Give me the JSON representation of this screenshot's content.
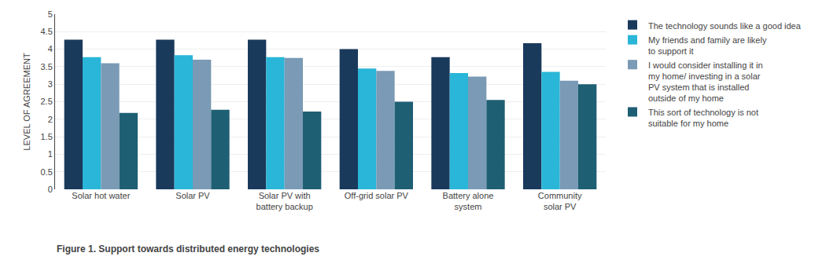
{
  "chart_data": {
    "type": "bar",
    "title": "Figure 1. Support towards distributed energy technologies",
    "categories": [
      "Solar hot water",
      "Solar PV",
      "Solar PV with\nbattery backup",
      "Off-grid solar PV",
      "Battery alone\nsystem",
      "Community\nsolar PV"
    ],
    "series": [
      {
        "name": "The technology sounds like a good idea",
        "color": "#1a3a5c",
        "values": [
          4.27,
          4.27,
          4.27,
          4.0,
          3.77,
          4.17
        ]
      },
      {
        "name": "My friends and family are likely\nto support it",
        "color": "#29b6d8",
        "values": [
          3.77,
          3.83,
          3.77,
          3.45,
          3.32,
          3.35
        ]
      },
      {
        "name": "I would consider installing it in\nmy home/ investing in a solar\nPV system that is installed\noutside of my home",
        "color": "#7a9ab5",
        "values": [
          3.6,
          3.7,
          3.75,
          3.38,
          3.22,
          3.1
        ]
      },
      {
        "name": "This sort of technology is not\nsuitable for my home",
        "color": "#1e5f74",
        "values": [
          2.18,
          2.27,
          2.22,
          2.5,
          2.55,
          3.0
        ]
      }
    ],
    "ylabel": "LEVEL OF AGREEMENT",
    "ylim": [
      0,
      5
    ],
    "yticks": [
      0,
      0.5,
      1,
      1.5,
      2,
      2.5,
      3,
      3.5,
      4,
      4.5,
      5
    ],
    "grid": true,
    "legend": "right"
  }
}
